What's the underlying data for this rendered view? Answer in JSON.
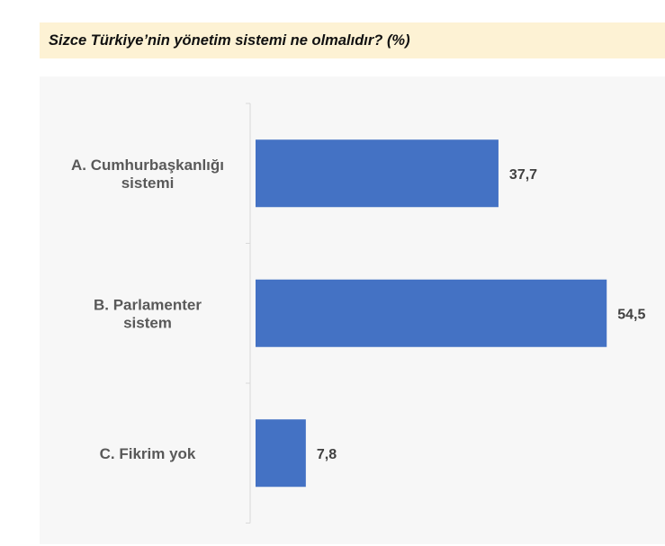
{
  "title": "Sizce Türkiye’nin yönetim sistemi ne olmalıdır? (%)",
  "colors": {
    "bar": "#4472c4",
    "title_background": "#fdf2d4",
    "axis": "#d9d9d9"
  },
  "chart_data": {
    "type": "bar",
    "orientation": "horizontal",
    "categories": [
      [
        "A. Cumhurbaşkanlığı",
        "sistemi"
      ],
      [
        "B. Parlamenter",
        "sistem"
      ],
      [
        "C. Fikrim yok"
      ]
    ],
    "values": [
      37.7,
      54.5,
      7.8
    ],
    "value_labels": [
      "37,7",
      "54,5",
      "7,8"
    ],
    "title": "Sizce Türkiye’nin yönetim sistemi ne olmalıdır? (%)",
    "xlabel": "",
    "ylabel": "",
    "xlim": [
      0,
      55
    ],
    "grid": false,
    "legend": "none"
  }
}
